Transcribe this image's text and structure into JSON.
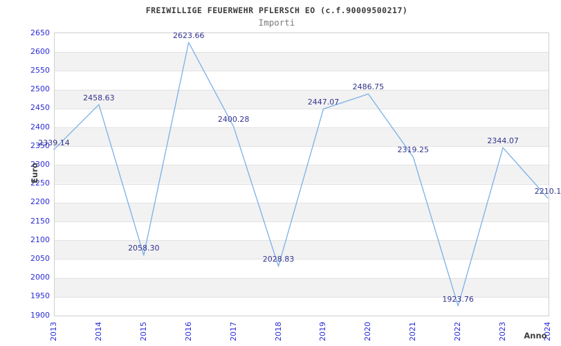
{
  "header": {
    "title": "FREIWILLIGE FEUERWEHR PFLERSCH EO (c.f.90009500217)",
    "subtitle": "Importi"
  },
  "chart_data": {
    "type": "line",
    "title": "FREIWILLIGE FEUERWEHR PFLERSCH EO (c.f.90009500217)",
    "subtitle": "Importi",
    "xlabel": "Anno",
    "ylabel": "Euro",
    "categories": [
      2013,
      2014,
      2015,
      2016,
      2017,
      2018,
      2019,
      2020,
      2021,
      2022,
      2023,
      2024
    ],
    "values": [
      2339.14,
      2458.63,
      2058.3,
      2623.66,
      2400.28,
      2028.83,
      2447.07,
      2486.75,
      2319.25,
      1923.76,
      2344.07,
      2210.1
    ],
    "point_labels": [
      "2339.14",
      "2458.63",
      "2058.30",
      "2623.66",
      "2400.28",
      "2028.83",
      "2447.07",
      "2486.75",
      "2319.25",
      "1923.76",
      "2344.07",
      "2210.1"
    ],
    "ylim": [
      1900,
      2650
    ],
    "ytick_step": 50,
    "legend_position": "none",
    "grid": "horizontal-bands",
    "colors": {
      "line": "#79b0e7",
      "axis_tick_label": "#2b2bd5",
      "point_label": "#32328e",
      "band_fill": "#f2f2f2",
      "gridline": "#e2e2e2",
      "plot_border": "#cfcfcf",
      "title_text": "#3a3a3a",
      "subtitle_text": "#7a7a7a",
      "axis_title_text": "#3d3d3d"
    }
  }
}
